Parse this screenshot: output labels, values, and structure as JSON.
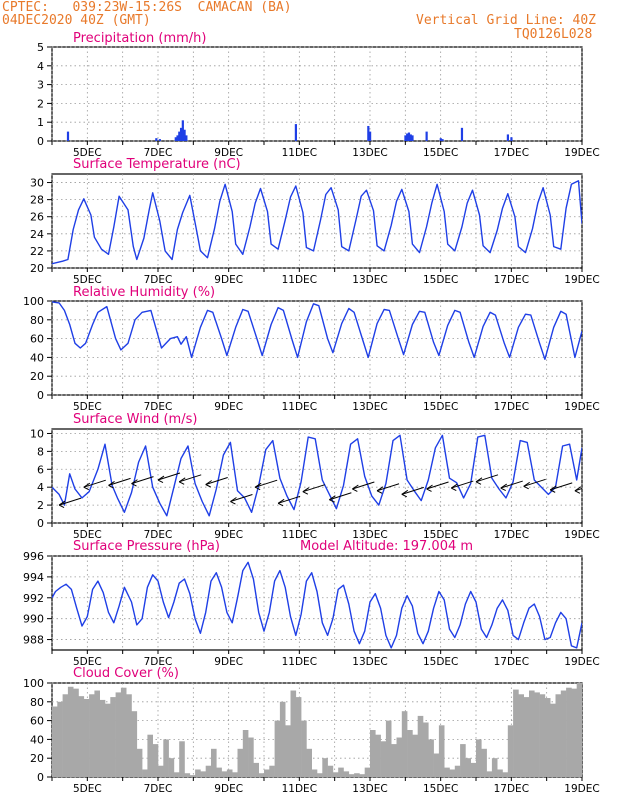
{
  "header": {
    "station": "CPTEC:   039:23W-15:26S  CAMACAN (BA)",
    "datetime": "04DEC2020 40Z (GMT)",
    "grid_note": "Vertical Grid Line: 40Z",
    "code": "TQ0126L028"
  },
  "colors": {
    "title": "#e0007a",
    "header": "#e8792a",
    "line": "#1f3fe6",
    "cloud": "#a8a8a8",
    "grid": "#9a9a9a"
  },
  "chart_data": [
    {
      "id": "precip",
      "type": "bar",
      "title": "Precipitation (mm/h)",
      "ylim": [
        0,
        5
      ],
      "yticks": [
        0,
        1,
        2,
        3,
        4,
        5
      ],
      "xlim": [
        4,
        19
      ],
      "xtick_labels": [
        "5DEC",
        "7DEC",
        "9DEC",
        "11DEC",
        "13DEC",
        "15DEC",
        "17DEC",
        "19DEC"
      ],
      "x": [
        4.45,
        6.95,
        7.05,
        7.5,
        7.55,
        7.6,
        7.65,
        7.7,
        7.75,
        7.8,
        10.9,
        12.95,
        13.0,
        14.0,
        14.05,
        14.1,
        14.15,
        14.2,
        14.6,
        15.0,
        15.05,
        15.6,
        16.9,
        17.0
      ],
      "values": [
        0.5,
        0.15,
        0.1,
        0.2,
        0.3,
        0.5,
        0.7,
        1.1,
        0.6,
        0.3,
        0.9,
        0.8,
        0.5,
        0.3,
        0.4,
        0.45,
        0.35,
        0.3,
        0.5,
        0.15,
        0.1,
        0.7,
        0.35,
        0.2
      ]
    },
    {
      "id": "temp",
      "type": "line",
      "title": "Surface Temperature (nC)",
      "ylim": [
        20,
        31
      ],
      "yticks": [
        20,
        22,
        24,
        26,
        28,
        30
      ],
      "xlim": [
        4,
        19
      ],
      "xtick_labels": [
        "5DEC",
        "7DEC",
        "9DEC",
        "11DEC",
        "13DEC",
        "15DEC",
        "17DEC",
        "19DEC"
      ],
      "x": [
        4.0,
        4.3,
        4.45,
        4.6,
        4.75,
        4.9,
        5.1,
        5.2,
        5.4,
        5.6,
        5.75,
        5.9,
        6.15,
        6.3,
        6.4,
        6.6,
        6.75,
        6.85,
        7.05,
        7.2,
        7.4,
        7.55,
        7.7,
        7.9,
        8.1,
        8.2,
        8.4,
        8.6,
        8.75,
        8.9,
        9.1,
        9.2,
        9.4,
        9.6,
        9.75,
        9.9,
        10.1,
        10.2,
        10.4,
        10.6,
        10.75,
        10.9,
        11.1,
        11.2,
        11.4,
        11.6,
        11.75,
        11.9,
        12.1,
        12.2,
        12.4,
        12.6,
        12.75,
        12.9,
        13.1,
        13.2,
        13.4,
        13.6,
        13.75,
        13.9,
        14.1,
        14.2,
        14.4,
        14.6,
        14.75,
        14.9,
        15.1,
        15.2,
        15.4,
        15.6,
        15.75,
        15.9,
        16.1,
        16.2,
        16.4,
        16.6,
        16.75,
        16.9,
        17.1,
        17.2,
        17.4,
        17.6,
        17.75,
        17.9,
        18.1,
        18.2,
        18.4,
        18.55,
        18.7,
        18.9,
        19.0
      ],
      "values": [
        20.5,
        20.8,
        21.0,
        24.5,
        26.8,
        28.1,
        26.2,
        23.6,
        22.2,
        21.6,
        24.8,
        28.4,
        26.8,
        22.5,
        21.0,
        23.5,
        26.8,
        28.8,
        25.5,
        22.0,
        21.0,
        24.5,
        26.5,
        28.5,
        24.2,
        22.0,
        21.2,
        24.6,
        27.8,
        29.8,
        26.6,
        22.8,
        21.6,
        24.8,
        27.6,
        29.3,
        26.6,
        22.8,
        22.2,
        25.6,
        28.3,
        29.6,
        26.5,
        22.4,
        22.0,
        25.6,
        28.6,
        29.4,
        26.8,
        22.5,
        22.0,
        25.6,
        28.4,
        29.1,
        26.7,
        22.6,
        22.0,
        25.0,
        27.8,
        29.2,
        26.6,
        22.8,
        21.8,
        24.8,
        27.6,
        29.8,
        26.6,
        22.8,
        22.0,
        24.8,
        27.6,
        29.1,
        26.2,
        22.6,
        21.8,
        24.4,
        27.0,
        28.7,
        26.0,
        22.5,
        21.8,
        24.6,
        27.6,
        29.4,
        26.2,
        22.5,
        22.2,
        27.0,
        29.8,
        30.2,
        25.2
      ]
    },
    {
      "id": "rh",
      "type": "line",
      "title": "Relative Humidity (%)",
      "ylim": [
        0,
        100
      ],
      "yticks": [
        0,
        20,
        40,
        60,
        80,
        100
      ],
      "xlim": [
        4,
        19
      ],
      "xtick_labels": [
        "5DEC",
        "7DEC",
        "9DEC",
        "11DEC",
        "13DEC",
        "15DEC",
        "17DEC",
        "19DEC"
      ],
      "x": [
        4.0,
        4.2,
        4.35,
        4.5,
        4.65,
        4.8,
        4.95,
        5.15,
        5.3,
        5.55,
        5.8,
        5.95,
        6.15,
        6.35,
        6.55,
        6.8,
        6.95,
        7.1,
        7.35,
        7.55,
        7.65,
        7.8,
        7.95,
        8.2,
        8.4,
        8.55,
        8.8,
        8.95,
        9.2,
        9.4,
        9.55,
        9.8,
        9.95,
        10.2,
        10.4,
        10.55,
        10.8,
        10.95,
        11.2,
        11.4,
        11.55,
        11.8,
        11.95,
        12.2,
        12.4,
        12.55,
        12.8,
        12.95,
        13.2,
        13.4,
        13.55,
        13.8,
        13.95,
        14.2,
        14.4,
        14.55,
        14.8,
        14.95,
        15.2,
        15.4,
        15.55,
        15.8,
        15.95,
        16.2,
        16.4,
        16.55,
        16.8,
        16.95,
        17.2,
        17.4,
        17.55,
        17.8,
        17.95,
        18.2,
        18.4,
        18.55,
        18.8,
        19.0
      ],
      "values": [
        99,
        98,
        90,
        75,
        55,
        50,
        55,
        75,
        88,
        94,
        60,
        48,
        55,
        80,
        88,
        90,
        70,
        50,
        60,
        62,
        54,
        62,
        40,
        72,
        90,
        88,
        60,
        42,
        72,
        91,
        89,
        60,
        42,
        75,
        93,
        90,
        58,
        40,
        78,
        97,
        95,
        60,
        45,
        76,
        92,
        88,
        58,
        40,
        76,
        91,
        90,
        60,
        43,
        75,
        89,
        88,
        56,
        42,
        74,
        90,
        88,
        56,
        40,
        73,
        88,
        85,
        55,
        40,
        72,
        86,
        85,
        55,
        38,
        72,
        89,
        86,
        40,
        68
      ]
    },
    {
      "id": "wind",
      "type": "line",
      "title": "Surface Wind (m/s)",
      "ylim": [
        0,
        10.5
      ],
      "yticks": [
        0,
        2,
        4,
        6,
        8,
        10
      ],
      "xlim": [
        4,
        19
      ],
      "xtick_labels": [
        "5DEC",
        "7DEC",
        "9DEC",
        "11DEC",
        "13DEC",
        "15DEC",
        "17DEC",
        "19DEC"
      ],
      "x": [
        4.0,
        4.2,
        4.35,
        4.5,
        4.65,
        4.85,
        5.05,
        5.3,
        5.5,
        5.7,
        5.85,
        6.05,
        6.25,
        6.45,
        6.65,
        6.85,
        7.05,
        7.25,
        7.45,
        7.65,
        7.85,
        8.05,
        8.25,
        8.45,
        8.65,
        8.85,
        9.05,
        9.25,
        9.45,
        9.65,
        9.85,
        10.05,
        10.25,
        10.45,
        10.65,
        10.85,
        11.05,
        11.25,
        11.45,
        11.65,
        11.85,
        12.05,
        12.25,
        12.45,
        12.65,
        12.85,
        13.05,
        13.25,
        13.45,
        13.65,
        13.85,
        14.05,
        14.25,
        14.45,
        14.65,
        14.85,
        15.05,
        15.25,
        15.45,
        15.65,
        15.85,
        16.05,
        16.25,
        16.45,
        16.65,
        16.85,
        17.05,
        17.25,
        17.45,
        17.65,
        17.85,
        18.05,
        18.25,
        18.45,
        18.65,
        18.85,
        19.0
      ],
      "values": [
        4.0,
        3.2,
        2.0,
        5.5,
        3.8,
        2.8,
        3.5,
        6.0,
        8.8,
        4.2,
        2.8,
        1.2,
        3.4,
        6.8,
        8.6,
        4.0,
        2.2,
        0.8,
        4.0,
        7.2,
        8.6,
        4.4,
        2.4,
        0.8,
        3.8,
        7.6,
        9.0,
        3.6,
        2.8,
        1.2,
        4.2,
        8.2,
        9.2,
        5.0,
        3.0,
        1.5,
        4.6,
        9.6,
        9.4,
        4.8,
        3.2,
        1.6,
        4.2,
        8.8,
        9.4,
        5.2,
        3.0,
        2.0,
        4.4,
        9.2,
        9.8,
        4.8,
        3.6,
        2.5,
        4.8,
        8.4,
        9.8,
        5.0,
        4.5,
        2.8,
        4.4,
        9.6,
        9.8,
        5.0,
        3.8,
        2.8,
        4.6,
        9.2,
        9.0,
        4.8,
        4.0,
        3.2,
        4.0,
        8.6,
        8.8,
        4.8,
        8.4
      ],
      "arrow_x": [
        4.2,
        4.9,
        5.6,
        6.25,
        7.0,
        7.6,
        8.35,
        9.05,
        9.75,
        10.4,
        11.1,
        11.85,
        12.5,
        13.2,
        13.9,
        14.6,
        15.3,
        16.0,
        16.7,
        17.35,
        18.1,
        18.8
      ],
      "arrow_base": [
        2.0,
        4.0,
        4.2,
        4.4,
        4.8,
        4.6,
        4.3,
        2.4,
        4.0,
        2.2,
        3.5,
        2.6,
        3.8,
        3.6,
        3.2,
        3.8,
        3.9,
        4.6,
        3.9,
        4.1,
        3.7,
        3.6
      ]
    },
    {
      "id": "pressure",
      "type": "line",
      "title": "Surface Pressure (hPa)",
      "subtitle": "Model Altitude: 197.004 m",
      "ylim": [
        987,
        996
      ],
      "yticks": [
        988,
        990,
        992,
        994,
        996
      ],
      "xlim": [
        4,
        19
      ],
      "xtick_labels": [
        "5DEC",
        "7DEC",
        "9DEC",
        "11DEC",
        "13DEC",
        "15DEC",
        "17DEC",
        "19DEC"
      ],
      "x": [
        4.0,
        4.1,
        4.25,
        4.4,
        4.55,
        4.7,
        4.85,
        5.0,
        5.15,
        5.3,
        5.45,
        5.6,
        5.75,
        5.9,
        6.05,
        6.25,
        6.4,
        6.55,
        6.7,
        6.85,
        7.0,
        7.15,
        7.3,
        7.45,
        7.6,
        7.75,
        7.9,
        8.05,
        8.2,
        8.35,
        8.5,
        8.65,
        8.8,
        8.95,
        9.1,
        9.25,
        9.4,
        9.55,
        9.7,
        9.85,
        10.0,
        10.15,
        10.3,
        10.45,
        10.6,
        10.75,
        10.9,
        11.05,
        11.2,
        11.35,
        11.5,
        11.65,
        11.8,
        11.95,
        12.1,
        12.25,
        12.4,
        12.55,
        12.7,
        12.85,
        13.0,
        13.15,
        13.3,
        13.45,
        13.6,
        13.75,
        13.9,
        14.05,
        14.2,
        14.35,
        14.5,
        14.65,
        14.8,
        14.95,
        15.1,
        15.25,
        15.4,
        15.55,
        15.7,
        15.85,
        16.0,
        16.15,
        16.3,
        16.45,
        16.6,
        16.75,
        16.9,
        17.05,
        17.2,
        17.35,
        17.5,
        17.65,
        17.8,
        17.95,
        18.1,
        18.25,
        18.4,
        18.55,
        18.7,
        18.85,
        19.0
      ],
      "values": [
        992.0,
        992.6,
        993.0,
        993.3,
        992.8,
        991.0,
        989.3,
        990.2,
        992.8,
        993.6,
        992.5,
        990.6,
        989.6,
        991.2,
        993.0,
        991.6,
        989.4,
        990.0,
        993.0,
        994.2,
        993.6,
        991.6,
        990.1,
        991.6,
        993.4,
        993.8,
        992.4,
        990.0,
        988.6,
        990.6,
        993.6,
        994.4,
        993.0,
        990.6,
        989.6,
        992.0,
        994.6,
        995.4,
        993.8,
        990.6,
        988.8,
        990.6,
        993.6,
        994.6,
        993.0,
        990.2,
        988.4,
        990.4,
        993.6,
        994.4,
        992.6,
        989.6,
        988.4,
        990.0,
        992.8,
        993.2,
        991.4,
        988.8,
        987.6,
        988.8,
        991.6,
        992.4,
        991.0,
        988.4,
        987.2,
        988.4,
        991.0,
        992.2,
        991.2,
        988.6,
        987.6,
        988.8,
        991.0,
        992.6,
        991.8,
        989.0,
        988.2,
        989.4,
        991.4,
        992.6,
        991.6,
        989.0,
        988.2,
        989.4,
        991.0,
        991.8,
        990.8,
        988.4,
        988.0,
        989.6,
        991.0,
        991.4,
        990.2,
        988.0,
        988.2,
        989.6,
        990.6,
        990.0,
        987.4,
        987.2,
        989.6
      ]
    },
    {
      "id": "cloud",
      "type": "area",
      "title": "Cloud Cover (%)",
      "ylim": [
        0,
        100
      ],
      "yticks": [
        0,
        20,
        40,
        60,
        80,
        100
      ],
      "xlim": [
        4,
        19
      ],
      "xtick_labels": [
        "5DEC",
        "7DEC",
        "9DEC",
        "11DEC",
        "13DEC",
        "15DEC",
        "17DEC",
        "19DEC"
      ],
      "x": [
        4.0,
        4.15,
        4.3,
        4.45,
        4.6,
        4.75,
        4.9,
        5.05,
        5.2,
        5.35,
        5.5,
        5.65,
        5.8,
        5.95,
        6.1,
        6.25,
        6.4,
        6.55,
        6.7,
        6.85,
        7.0,
        7.15,
        7.3,
        7.45,
        7.6,
        7.75,
        7.9,
        8.05,
        8.2,
        8.35,
        8.5,
        8.65,
        8.8,
        8.95,
        9.1,
        9.25,
        9.4,
        9.55,
        9.7,
        9.85,
        10.0,
        10.15,
        10.3,
        10.45,
        10.6,
        10.75,
        10.9,
        11.05,
        11.2,
        11.35,
        11.5,
        11.65,
        11.8,
        11.95,
        12.1,
        12.25,
        12.4,
        12.55,
        12.7,
        12.85,
        13.0,
        13.15,
        13.3,
        13.45,
        13.6,
        13.75,
        13.9,
        14.05,
        14.2,
        14.35,
        14.5,
        14.65,
        14.8,
        14.95,
        15.1,
        15.25,
        15.4,
        15.55,
        15.7,
        15.85,
        16.0,
        16.15,
        16.3,
        16.45,
        16.6,
        16.75,
        16.9,
        17.05,
        17.2,
        17.35,
        17.5,
        17.65,
        17.8,
        17.95,
        18.1,
        18.25,
        18.4,
        18.55,
        18.7,
        18.85,
        19.0
      ],
      "values": [
        75,
        80,
        88,
        96,
        94,
        86,
        83,
        88,
        92,
        82,
        78,
        85,
        90,
        95,
        88,
        70,
        30,
        8,
        45,
        35,
        12,
        40,
        20,
        5,
        38,
        4,
        2,
        8,
        6,
        12,
        30,
        10,
        6,
        8,
        5,
        30,
        50,
        42,
        15,
        4,
        8,
        12,
        60,
        80,
        55,
        92,
        85,
        60,
        30,
        8,
        4,
        20,
        12,
        5,
        10,
        6,
        3,
        4,
        3,
        10,
        50,
        45,
        38,
        60,
        35,
        42,
        70,
        50,
        45,
        65,
        58,
        40,
        25,
        55,
        10,
        8,
        12,
        35,
        20,
        15,
        40,
        30,
        6,
        20,
        8,
        5,
        55,
        93,
        88,
        85,
        92,
        90,
        88,
        84,
        78,
        88,
        92,
        95,
        94,
        100,
        98
      ]
    }
  ]
}
